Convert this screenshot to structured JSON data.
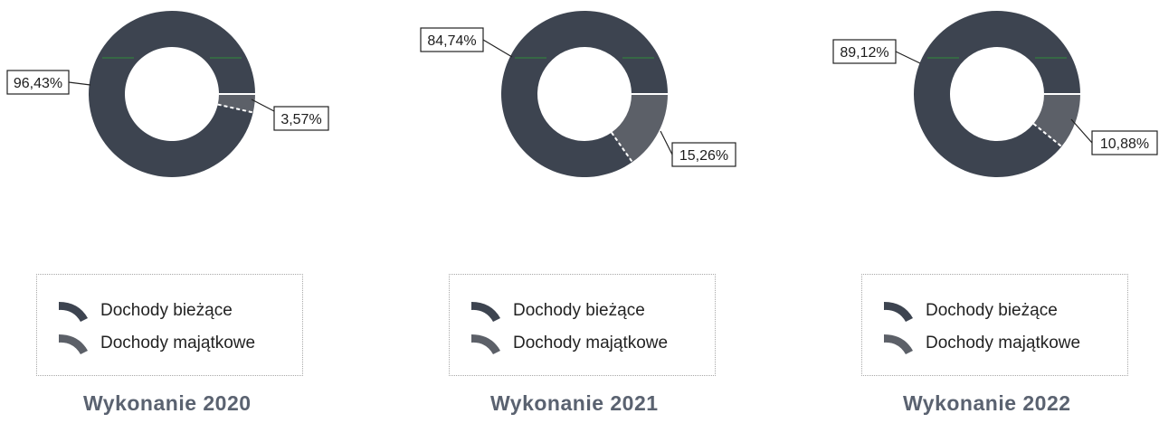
{
  "colors": {
    "dochody_biezace": "#3d4450",
    "dochody_majatkowe": "#5c6068",
    "accent_line": "#2e8b3a",
    "separator": "#ffffff"
  },
  "legend": {
    "items": [
      {
        "label": "Dochody bieżące",
        "icon": "arc-swatch-dark"
      },
      {
        "label": "Dochody majątkowe",
        "icon": "arc-swatch-gray"
      }
    ]
  },
  "chart_data": [
    {
      "type": "pie",
      "title": "Wykonanie 2020",
      "categories": [
        "Dochody bieżące",
        "Dochody majątkowe"
      ],
      "values": [
        96.43,
        3.57
      ],
      "labels": [
        "96,43%",
        "3,57%"
      ],
      "legend": "below"
    },
    {
      "type": "pie",
      "title": "Wykonanie 2021",
      "categories": [
        "Dochody bieżące",
        "Dochody majątkowe"
      ],
      "values": [
        84.74,
        15.26
      ],
      "labels": [
        "84,74%",
        "15,26%"
      ],
      "legend": "below"
    },
    {
      "type": "pie",
      "title": "Wykonanie 2022",
      "categories": [
        "Dochody bieżące",
        "Dochody majątkowe"
      ],
      "values": [
        89.12,
        10.88
      ],
      "labels": [
        "89,12%",
        "10,88%"
      ],
      "legend": "below"
    }
  ]
}
